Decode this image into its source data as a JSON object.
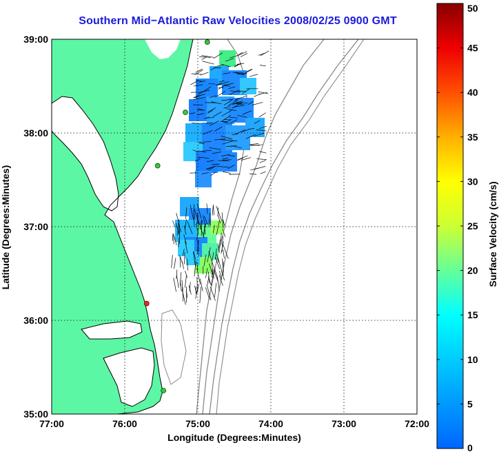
{
  "title": "Southern Mid−Atlantic Raw Velocities 2008/02/25 0900 GMT",
  "map": {
    "xlabel": "Longitude (Degrees:Minutes)",
    "ylabel": "Latitude (Degrees:Minutes)",
    "lon_ticks": [
      {
        "value": -77,
        "label": "77:00"
      },
      {
        "value": -76,
        "label": "76:00"
      },
      {
        "value": -75,
        "label": "75:00"
      },
      {
        "value": -74,
        "label": "74:00"
      },
      {
        "value": -73,
        "label": "73:00"
      },
      {
        "value": -72,
        "label": "72:00"
      }
    ],
    "lat_ticks": [
      {
        "value": 39,
        "label": "39:00"
      },
      {
        "value": 38,
        "label": "38:00"
      },
      {
        "value": 37,
        "label": "37:00"
      },
      {
        "value": 36,
        "label": "36:00"
      },
      {
        "value": 35,
        "label": "35:00"
      }
    ],
    "lon_range": [
      -77,
      -72
    ],
    "lat_range": [
      35,
      39
    ],
    "grid": true,
    "colors": {
      "land": "#5cf7a5",
      "coastline": "#000000",
      "bathymetry": "#8a8a8a",
      "grid": "#000000",
      "title": "#1a1adb"
    },
    "stations": [
      {
        "lon": -74.87,
        "lat": 38.97,
        "color": "#33cc33"
      },
      {
        "lon": -75.17,
        "lat": 38.22,
        "color": "#33cc33"
      },
      {
        "lon": -75.55,
        "lat": 37.65,
        "color": "#33cc33"
      },
      {
        "lon": -75.7,
        "lat": 36.18,
        "color": "#ff2020"
      },
      {
        "lon": -75.47,
        "lat": 35.25,
        "color": "#33cc33"
      }
    ]
  },
  "colorbar": {
    "label": "Surface Velocity (cm/s)",
    "min": 0,
    "max": 50,
    "ticks": [
      {
        "value": 50,
        "label": "50"
      },
      {
        "value": 45,
        "label": "45"
      },
      {
        "value": 40,
        "label": "40"
      },
      {
        "value": 35,
        "label": "35"
      },
      {
        "value": 30,
        "label": "30"
      },
      {
        "value": 25,
        "label": "25"
      },
      {
        "value": 20,
        "label": "20"
      },
      {
        "value": 15,
        "label": "15"
      },
      {
        "value": 10,
        "label": "10"
      },
      {
        "value": 5,
        "label": "5"
      },
      {
        "value": 0,
        "label": "0"
      }
    ]
  }
}
